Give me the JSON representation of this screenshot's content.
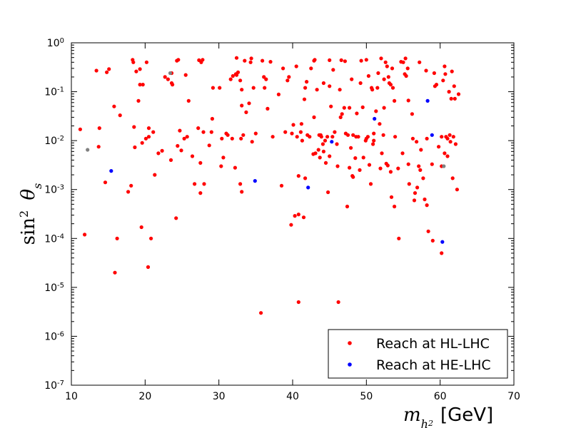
{
  "chart_data": {
    "type": "scatter",
    "xlabel_main": "m",
    "xlabel_sub": "h",
    "xlabel_subsub": "2",
    "xlabel_unit": "[GeV]",
    "ylabel_prefix": "sin",
    "ylabel_power": "2",
    "ylabel_theta": "θ",
    "ylabel_sub": "s",
    "xlim": [
      10,
      70
    ],
    "ylim_log10": [
      -7,
      0
    ],
    "x_scale": "linear",
    "y_scale": "log",
    "grid": false,
    "legend_position": "bottom-right",
    "x_ticks": [
      "10",
      "20",
      "30",
      "40",
      "50",
      "60",
      "70"
    ],
    "y_ticks": [
      {
        "base": "10",
        "exp": "-7"
      },
      {
        "base": "10",
        "exp": "-6"
      },
      {
        "base": "10",
        "exp": "-5"
      },
      {
        "base": "10",
        "exp": "-4"
      },
      {
        "base": "10",
        "exp": "-3"
      },
      {
        "base": "10",
        "exp": "-2"
      },
      {
        "base": "10",
        "exp": "-1"
      },
      {
        "base": "10",
        "exp": "0"
      }
    ],
    "series": [
      {
        "name": "Reach at HL-LHC",
        "color": "#ff0000",
        "points": [
          [
            11.2,
            0.017
          ],
          [
            11.8,
            0.00012
          ],
          [
            13.4,
            0.27
          ],
          [
            13.7,
            0.0075
          ],
          [
            13.8,
            0.018
          ],
          [
            14.6,
            0.0014
          ],
          [
            14.8,
            0.25
          ],
          [
            15.1,
            0.29
          ],
          [
            15.8,
            0.05
          ],
          [
            15.9,
            2e-05
          ],
          [
            16.2,
            0.0001
          ],
          [
            16.6,
            0.033
          ],
          [
            17.7,
            0.0009
          ],
          [
            18.1,
            0.0012
          ],
          [
            18.3,
            0.45
          ],
          [
            18.4,
            0.4
          ],
          [
            18.5,
            0.019
          ],
          [
            18.6,
            0.0073
          ],
          [
            18.8,
            0.26
          ],
          [
            19.1,
            0.065
          ],
          [
            19.3,
            0.14
          ],
          [
            19.3,
            0.29
          ],
          [
            19.5,
            0.00017
          ],
          [
            19.6,
            0.009
          ],
          [
            19.7,
            0.14
          ],
          [
            20.1,
            0.011
          ],
          [
            20.2,
            0.4
          ],
          [
            20.4,
            2.6e-05
          ],
          [
            20.5,
            0.012
          ],
          [
            20.5,
            0.018
          ],
          [
            20.8,
            0.0001
          ],
          [
            21.1,
            0.015
          ],
          [
            21.3,
            0.002
          ],
          [
            21.8,
            0.0055
          ],
          [
            22.3,
            0.0062
          ],
          [
            22.7,
            0.2
          ],
          [
            23.1,
            0.18
          ],
          [
            23.5,
            0.004
          ],
          [
            23.6,
            0.24
          ],
          [
            23.6,
            0.15
          ],
          [
            23.7,
            0.14
          ],
          [
            24.2,
            0.00026
          ],
          [
            24.3,
            0.43
          ],
          [
            24.4,
            0.0078
          ],
          [
            24.5,
            0.45
          ],
          [
            24.7,
            0.016
          ],
          [
            24.9,
            0.0063
          ],
          [
            25.3,
            0.011
          ],
          [
            25.5,
            0.22
          ],
          [
            25.7,
            0.012
          ],
          [
            25.9,
            0.065
          ],
          [
            26.4,
            0.0048
          ],
          [
            26.7,
            0.0013
          ],
          [
            27.2,
            0.018
          ],
          [
            27.3,
            0.44
          ],
          [
            27.5,
            0.0035
          ],
          [
            27.5,
            0.00085
          ],
          [
            27.6,
            0.4
          ],
          [
            27.8,
            0.45
          ],
          [
            27.9,
            0.015
          ],
          [
            28.0,
            0.0013
          ],
          [
            28.7,
            0.008
          ],
          [
            29.0,
            0.015
          ],
          [
            29.1,
            0.028
          ],
          [
            29.2,
            0.12
          ],
          [
            30.1,
            0.12
          ],
          [
            30.3,
            0.003
          ],
          [
            30.4,
            0.011
          ],
          [
            30.6,
            0.0045
          ],
          [
            31.0,
            0.014
          ],
          [
            31.2,
            0.013
          ],
          [
            31.6,
            0.18
          ],
          [
            31.8,
            0.011
          ],
          [
            31.9,
            0.21
          ],
          [
            32.2,
            0.0028
          ],
          [
            32.3,
            0.23
          ],
          [
            32.4,
            0.22
          ],
          [
            32.4,
            0.49
          ],
          [
            32.6,
            0.25
          ],
          [
            32.9,
            0.0013
          ],
          [
            32.9,
            0.17
          ],
          [
            33.0,
            0.011
          ],
          [
            33.1,
            0.0009
          ],
          [
            33.1,
            0.11
          ],
          [
            33.1,
            0.052
          ],
          [
            33.3,
            0.013
          ],
          [
            33.5,
            0.43
          ],
          [
            33.7,
            0.038
          ],
          [
            34.1,
            0.058
          ],
          [
            34.3,
            0.4
          ],
          [
            34.4,
            0.48
          ],
          [
            34.5,
            0.0095
          ],
          [
            34.7,
            0.12
          ],
          [
            35.0,
            0.014
          ],
          [
            35.7,
            3e-06
          ],
          [
            35.9,
            0.43
          ],
          [
            36.1,
            0.2
          ],
          [
            36.2,
            0.12
          ],
          [
            36.4,
            0.18
          ],
          [
            36.6,
            0.045
          ],
          [
            37.0,
            0.41
          ],
          [
            37.3,
            0.012
          ],
          [
            38.1,
            0.088
          ],
          [
            38.5,
            0.0012
          ],
          [
            38.7,
            0.3
          ],
          [
            39.0,
            0.015
          ],
          [
            39.3,
            0.17
          ],
          [
            39.5,
            0.2
          ],
          [
            39.8,
            0.00019
          ],
          [
            39.9,
            0.014
          ],
          [
            40.1,
            0.021
          ],
          [
            40.3,
            0.00029
          ],
          [
            40.5,
            0.33
          ],
          [
            40.6,
            0.012
          ],
          [
            40.8,
            0.0019
          ],
          [
            40.8,
            0.00031
          ],
          [
            40.8,
            5e-06
          ],
          [
            41.1,
            0.015
          ],
          [
            41.2,
            0.022
          ],
          [
            41.3,
            0.01
          ],
          [
            41.5,
            0.00027
          ],
          [
            41.6,
            0.07
          ],
          [
            41.7,
            0.0017
          ],
          [
            41.7,
            0.12
          ],
          [
            41.9,
            0.16
          ],
          [
            42.0,
            0.013
          ],
          [
            42.3,
            0.012
          ],
          [
            42.5,
            0.3
          ],
          [
            42.8,
            0.0053
          ],
          [
            42.9,
            0.43
          ],
          [
            42.9,
            0.03
          ],
          [
            43.0,
            0.45
          ],
          [
            43.1,
            0.0055
          ],
          [
            43.3,
            0.11
          ],
          [
            43.5,
            0.0065
          ],
          [
            43.6,
            0.013
          ],
          [
            43.7,
            0.0045
          ],
          [
            43.8,
            0.013
          ],
          [
            43.9,
            0.012
          ],
          [
            44.1,
            0.0085
          ],
          [
            44.2,
            0.006
          ],
          [
            44.2,
            0.15
          ],
          [
            44.4,
            0.01
          ],
          [
            44.5,
            0.0035
          ],
          [
            44.7,
            0.012
          ],
          [
            44.8,
            0.00088
          ],
          [
            45.0,
            0.44
          ],
          [
            45.0,
            0.13
          ],
          [
            45.0,
            0.0048
          ],
          [
            45.2,
            0.05
          ],
          [
            45.4,
            0.012
          ],
          [
            45.5,
            0.28
          ],
          [
            45.7,
            0.015
          ],
          [
            46.0,
            0.0085
          ],
          [
            46.1,
            0.003
          ],
          [
            46.2,
            5e-06
          ],
          [
            46.4,
            0.11
          ],
          [
            46.5,
            0.03
          ],
          [
            46.6,
            0.44
          ],
          [
            46.7,
            0.035
          ],
          [
            47.0,
            0.047
          ],
          [
            47.1,
            0.42
          ],
          [
            47.2,
            0.014
          ],
          [
            47.4,
            0.00045
          ],
          [
            47.5,
            0.013
          ],
          [
            47.7,
            0.047
          ],
          [
            47.7,
            0.0028
          ],
          [
            47.9,
            0.0071
          ],
          [
            48.0,
            0.18
          ],
          [
            48.1,
            0.0019
          ],
          [
            48.2,
            0.0018
          ],
          [
            48.2,
            0.013
          ],
          [
            48.5,
            0.0044
          ],
          [
            48.6,
            0.012
          ],
          [
            48.7,
            0.036
          ],
          [
            48.9,
            0.012
          ],
          [
            49.1,
            0.0025
          ],
          [
            49.2,
            0.15
          ],
          [
            49.3,
            0.43
          ],
          [
            49.5,
            0.048
          ],
          [
            49.6,
            0.0045
          ],
          [
            49.9,
            0.01
          ],
          [
            50.0,
            0.45
          ],
          [
            50.0,
            0.011
          ],
          [
            50.2,
            0.012
          ],
          [
            50.3,
            0.21
          ],
          [
            50.4,
            0.0032
          ],
          [
            50.6,
            0.0013
          ],
          [
            50.7,
            0.12
          ],
          [
            50.8,
            0.11
          ],
          [
            50.9,
            0.0085
          ],
          [
            51.0,
            0.014
          ],
          [
            51.0,
            0.01
          ],
          [
            51.3,
            0.04
          ],
          [
            51.5,
            0.12
          ],
          [
            51.6,
            0.24
          ],
          [
            51.8,
            0.022
          ],
          [
            51.9,
            0.0027
          ],
          [
            52.0,
            0.48
          ],
          [
            52.1,
            0.0055
          ],
          [
            52.3,
            0.013
          ],
          [
            52.4,
            0.18
          ],
          [
            52.4,
            0.047
          ],
          [
            52.6,
            0.4
          ],
          [
            52.7,
            0.0034
          ],
          [
            52.8,
            0.33
          ],
          [
            52.9,
            0.0031
          ],
          [
            53.0,
            0.2
          ],
          [
            53.1,
            0.15
          ],
          [
            53.3,
            0.14
          ],
          [
            53.3,
            0.0023
          ],
          [
            53.4,
            0.0007
          ],
          [
            53.5,
            0.3
          ],
          [
            53.6,
            0.12
          ],
          [
            53.8,
            0.065
          ],
          [
            53.8,
            0.00045
          ],
          [
            53.9,
            0.012
          ],
          [
            54.3,
            0.0027
          ],
          [
            54.4,
            0.0001
          ],
          [
            54.7,
            0.41
          ],
          [
            54.9,
            0.0055
          ],
          [
            55.0,
            0.4
          ],
          [
            55.2,
            0.23
          ],
          [
            55.3,
            0.48
          ],
          [
            55.4,
            0.21
          ],
          [
            55.6,
            0.3
          ],
          [
            55.7,
            0.066
          ],
          [
            55.7,
            0.0033
          ],
          [
            55.8,
            0.0013
          ],
          [
            56.2,
            0.035
          ],
          [
            56.3,
            0.011
          ],
          [
            56.5,
            0.0006
          ],
          [
            56.6,
            0.00085
          ],
          [
            56.8,
            0.0095
          ],
          [
            56.9,
            0.0011
          ],
          [
            57.1,
            0.003
          ],
          [
            57.2,
            0.4
          ],
          [
            57.3,
            0.0025
          ],
          [
            57.4,
            0.0065
          ],
          [
            57.7,
            0.0017
          ],
          [
            57.9,
            0.00063
          ],
          [
            58.1,
            0.27
          ],
          [
            58.2,
            0.011
          ],
          [
            58.2,
            0.00048
          ],
          [
            58.4,
            0.00014
          ],
          [
            58.9,
            0.0033
          ],
          [
            59.0,
            9e-05
          ],
          [
            59.2,
            0.24
          ],
          [
            59.3,
            0.13
          ],
          [
            59.5,
            0.14
          ],
          [
            59.8,
            0.0075
          ],
          [
            60.2,
            0.012
          ],
          [
            60.2,
            0.003
          ],
          [
            60.2,
            5e-05
          ],
          [
            60.4,
            0.17
          ],
          [
            60.6,
            0.33
          ],
          [
            60.7,
            0.23
          ],
          [
            60.8,
            0.012
          ],
          [
            61.0,
            0.011
          ],
          [
            61.0,
            0.0048
          ],
          [
            61.2,
            0.1
          ],
          [
            61.3,
            0.013
          ],
          [
            61.4,
            0.0095
          ],
          [
            61.5,
            0.072
          ],
          [
            61.6,
            0.26
          ],
          [
            61.7,
            0.0017
          ],
          [
            61.8,
            0.012
          ],
          [
            61.9,
            0.13
          ],
          [
            62.0,
            0.072
          ],
          [
            62.1,
            0.0085
          ],
          [
            62.3,
            0.001
          ],
          [
            62.5,
            0.089
          ],
          [
            60.6,
            0.0055
          ]
        ]
      },
      {
        "name": "Reach at HE-LHC",
        "color": "#0000ff",
        "points": [
          [
            15.4,
            0.0024
          ],
          [
            34.9,
            0.0015
          ],
          [
            42.1,
            0.0011
          ],
          [
            45.3,
            0.0095
          ],
          [
            51.1,
            0.028
          ],
          [
            58.3,
            0.065
          ],
          [
            58.9,
            0.013
          ],
          [
            60.3,
            8.5e-05
          ]
        ]
      },
      {
        "color": "#808080",
        "points": [
          [
            12.2,
            0.0065
          ],
          [
            23.4,
            0.24
          ],
          [
            60.5,
            0.003
          ]
        ]
      }
    ]
  }
}
